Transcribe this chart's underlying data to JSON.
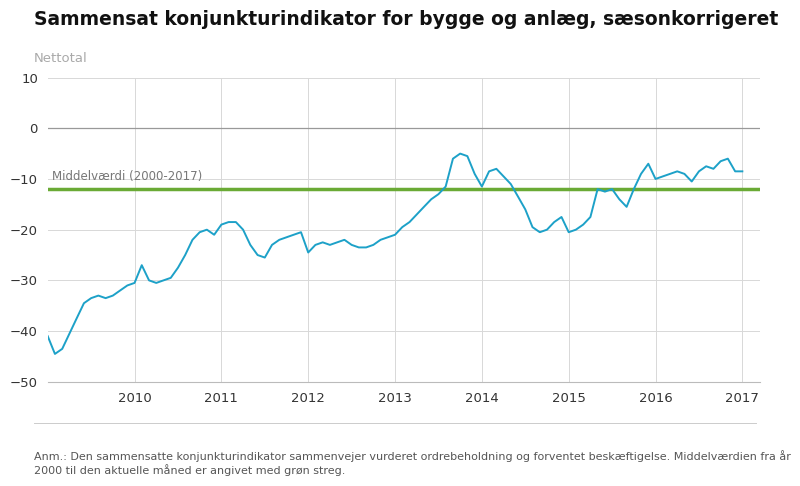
{
  "title": "Sammensat konjunkturindikator for bygge og anlæg, sæsonkorrigeret",
  "ylabel": "Nettotal",
  "footnote": "Anm.: Den sammensatte konjunkturindikator sammenvejer vurderet ordrebeholdning og forventet beskæftigelse. Middelværdien fra år\n2000 til den aktuelle måned er angivet med grøn streg.",
  "mean_label": "Middelværdi (2000-2017)",
  "mean_value": -12.0,
  "ylim": [
    -50,
    10
  ],
  "yticks": [
    -50,
    -40,
    -30,
    -20,
    -10,
    0,
    10
  ],
  "line_color": "#1da1c8",
  "mean_line_color": "#6aaa35",
  "zero_line_color": "#999999",
  "background_color": "#ffffff",
  "grid_color": "#d8d8d8",
  "title_fontsize": 13.5,
  "tick_fontsize": 9.5,
  "annotation_fontsize": 8.5,
  "footnote_fontsize": 8,
  "x_values": [
    2009.0,
    2009.083,
    2009.167,
    2009.25,
    2009.333,
    2009.417,
    2009.5,
    2009.583,
    2009.667,
    2009.75,
    2009.833,
    2009.917,
    2010.0,
    2010.083,
    2010.167,
    2010.25,
    2010.333,
    2010.417,
    2010.5,
    2010.583,
    2010.667,
    2010.75,
    2010.833,
    2010.917,
    2011.0,
    2011.083,
    2011.167,
    2011.25,
    2011.333,
    2011.417,
    2011.5,
    2011.583,
    2011.667,
    2011.75,
    2011.833,
    2011.917,
    2012.0,
    2012.083,
    2012.167,
    2012.25,
    2012.333,
    2012.417,
    2012.5,
    2012.583,
    2012.667,
    2012.75,
    2012.833,
    2012.917,
    2013.0,
    2013.083,
    2013.167,
    2013.25,
    2013.333,
    2013.417,
    2013.5,
    2013.583,
    2013.667,
    2013.75,
    2013.833,
    2013.917,
    2014.0,
    2014.083,
    2014.167,
    2014.25,
    2014.333,
    2014.417,
    2014.5,
    2014.583,
    2014.667,
    2014.75,
    2014.833,
    2014.917,
    2015.0,
    2015.083,
    2015.167,
    2015.25,
    2015.333,
    2015.417,
    2015.5,
    2015.583,
    2015.667,
    2015.75,
    2015.833,
    2015.917,
    2016.0,
    2016.083,
    2016.167,
    2016.25,
    2016.333,
    2016.417,
    2016.5,
    2016.583,
    2016.667,
    2016.75,
    2016.833,
    2016.917,
    2017.0
  ],
  "y_values": [
    -41.0,
    -44.5,
    -43.5,
    -40.5,
    -37.5,
    -34.5,
    -33.5,
    -33.0,
    -33.5,
    -33.0,
    -32.0,
    -31.0,
    -30.5,
    -27.0,
    -30.0,
    -30.5,
    -30.0,
    -29.5,
    -27.5,
    -25.0,
    -22.0,
    -20.5,
    -20.0,
    -21.0,
    -19.0,
    -18.5,
    -18.5,
    -20.0,
    -23.0,
    -25.0,
    -25.5,
    -23.0,
    -22.0,
    -21.5,
    -21.0,
    -20.5,
    -24.5,
    -23.0,
    -22.5,
    -23.0,
    -22.5,
    -22.0,
    -23.0,
    -23.5,
    -23.5,
    -23.0,
    -22.0,
    -21.5,
    -21.0,
    -19.5,
    -18.5,
    -17.0,
    -15.5,
    -14.0,
    -13.0,
    -11.5,
    -6.0,
    -5.0,
    -5.5,
    -9.0,
    -11.5,
    -8.5,
    -8.0,
    -9.5,
    -11.0,
    -13.5,
    -16.0,
    -19.5,
    -20.5,
    -20.0,
    -18.5,
    -17.5,
    -20.5,
    -20.0,
    -19.0,
    -17.5,
    -12.0,
    -12.5,
    -12.0,
    -14.0,
    -15.5,
    -12.0,
    -9.0,
    -7.0,
    -10.0,
    -9.5,
    -9.0,
    -8.5,
    -9.0,
    -10.5,
    -8.5,
    -7.5,
    -8.0,
    -6.5,
    -6.0,
    -8.5,
    -8.5
  ]
}
